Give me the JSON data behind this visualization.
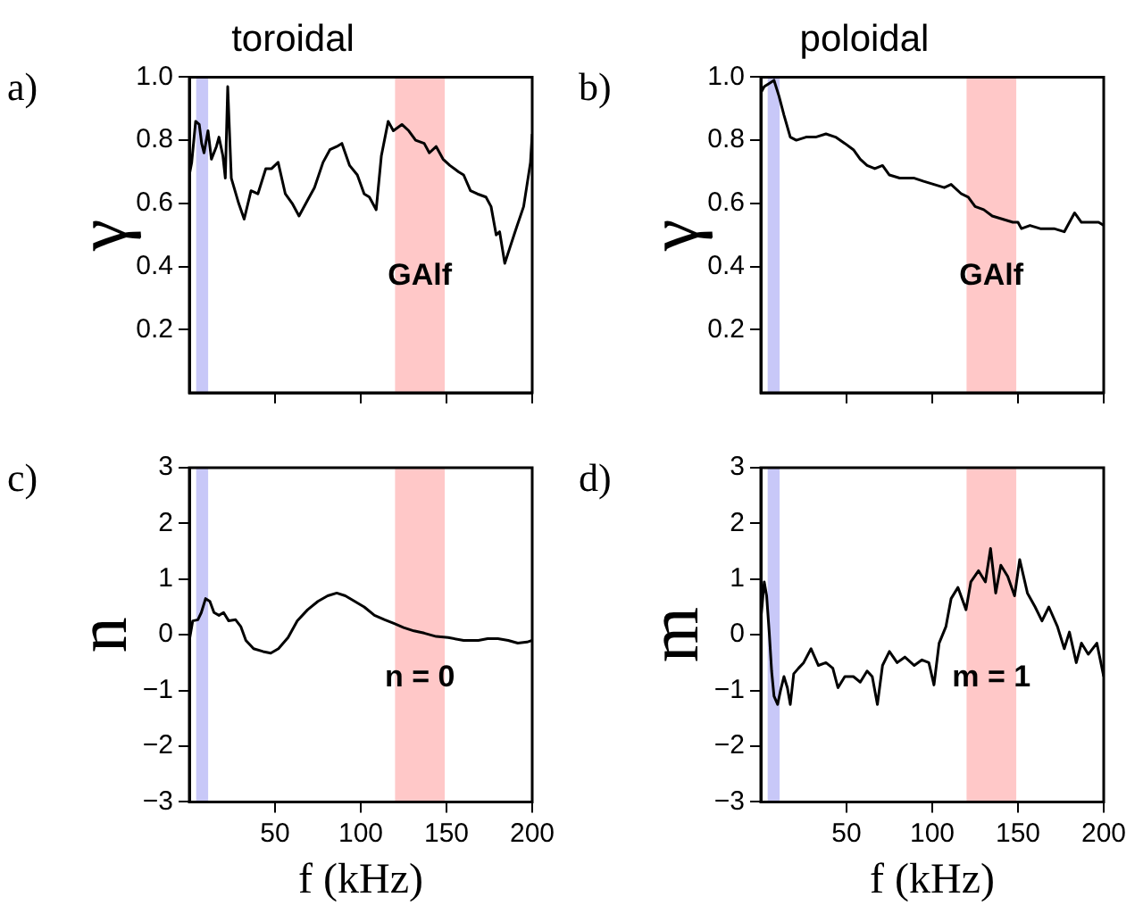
{
  "chart_data": [
    {
      "type": "line",
      "title": "toroidal",
      "ylabel": "γ",
      "xlim": [
        0,
        200
      ],
      "xticks": [
        50,
        100,
        150,
        200
      ],
      "ylim": [
        0,
        1
      ],
      "yticks": [
        0.2,
        0.4,
        0.6,
        0.8,
        {
          "value": 1,
          "label": "1.0"
        }
      ],
      "tick_labels": "y",
      "grid": false,
      "bands": [
        {
          "axis": "x",
          "from": 4,
          "to": 11,
          "color": "#c8c8f8"
        },
        {
          "axis": "x",
          "from": 120,
          "to": 149,
          "color": "#ffc8c8"
        }
      ],
      "annotations": [
        "a)",
        "GAlf"
      ],
      "series": [
        {
          "color": "#000000",
          "x": [
            0,
            1.4,
            3.7,
            5.8,
            7.2,
            8.6,
            10.9,
            12.9,
            15.8,
            17.3,
            19.6,
            21,
            22.4,
            24.5,
            28.8,
            32,
            36,
            40,
            44.6,
            48,
            51.8,
            56,
            60,
            64,
            69,
            73,
            78,
            82,
            86,
            89,
            93.5,
            98,
            102,
            105,
            109,
            112,
            116,
            119,
            124,
            128,
            132,
            137,
            140,
            144,
            148,
            152,
            157,
            160,
            164,
            168,
            173,
            176,
            179,
            181,
            184,
            187,
            190,
            195,
            199,
            200
          ],
          "values": [
            0.69,
            0.73,
            0.86,
            0.85,
            0.79,
            0.76,
            0.83,
            0.74,
            0.78,
            0.81,
            0.75,
            0.68,
            0.97,
            0.68,
            0.6,
            0.55,
            0.64,
            0.63,
            0.71,
            0.71,
            0.73,
            0.63,
            0.6,
            0.56,
            0.61,
            0.65,
            0.73,
            0.77,
            0.78,
            0.79,
            0.72,
            0.69,
            0.63,
            0.62,
            0.58,
            0.75,
            0.86,
            0.83,
            0.85,
            0.83,
            0.8,
            0.79,
            0.76,
            0.78,
            0.74,
            0.72,
            0.7,
            0.69,
            0.64,
            0.63,
            0.62,
            0.59,
            0.5,
            0.51,
            0.41,
            0.46,
            0.51,
            0.59,
            0.73,
            0.82
          ]
        }
      ]
    },
    {
      "type": "line",
      "title": "poloidal",
      "ylabel": "γ",
      "xlim": [
        0,
        200
      ],
      "xticks": [
        50,
        100,
        150,
        200
      ],
      "ylim": [
        0,
        1
      ],
      "yticks": [
        0.2,
        0.4,
        0.6,
        0.8,
        {
          "value": 1,
          "label": "1.0"
        }
      ],
      "tick_labels": "y",
      "grid": false,
      "bands": [
        {
          "axis": "x",
          "from": 4,
          "to": 11,
          "color": "#c8c8f8"
        },
        {
          "axis": "x",
          "from": 120,
          "to": 149,
          "color": "#ffc8c8"
        }
      ],
      "annotations": [
        "b)",
        "GAlf"
      ],
      "series": [
        {
          "color": "#000000",
          "x": [
            0,
            2,
            4.9,
            7.7,
            10.6,
            13.5,
            17.2,
            20.7,
            26.4,
            32,
            38,
            43.6,
            49,
            54,
            58,
            62,
            66.5,
            71,
            75,
            81,
            85,
            89.5,
            95,
            101,
            107,
            111,
            117,
            121,
            125,
            130,
            135,
            141,
            147,
            150,
            152,
            157,
            163,
            167,
            171,
            177,
            183,
            187,
            193,
            197,
            200
          ],
          "values": [
            0.95,
            0.97,
            0.98,
            0.99,
            0.94,
            0.88,
            0.81,
            0.8,
            0.81,
            0.81,
            0.82,
            0.81,
            0.79,
            0.77,
            0.74,
            0.72,
            0.71,
            0.72,
            0.69,
            0.68,
            0.68,
            0.68,
            0.67,
            0.66,
            0.65,
            0.66,
            0.63,
            0.62,
            0.59,
            0.58,
            0.56,
            0.55,
            0.54,
            0.54,
            0.52,
            0.53,
            0.52,
            0.52,
            0.52,
            0.51,
            0.57,
            0.54,
            0.54,
            0.54,
            0.53
          ]
        }
      ]
    },
    {
      "type": "line",
      "xlabel": "f (kHz)",
      "ylabel": "n",
      "xlim": [
        0,
        200
      ],
      "xticks": [
        50,
        100,
        150,
        200
      ],
      "ylim": [
        -3,
        3
      ],
      "yticks": [
        {
          "value": -3,
          "label": "−3"
        },
        {
          "value": -2,
          "label": "−2"
        },
        {
          "value": -1,
          "label": "−1"
        },
        0,
        1,
        2,
        3
      ],
      "grid": false,
      "bands": [
        {
          "axis": "x",
          "from": 4,
          "to": 11,
          "color": "#c8c8f8"
        },
        {
          "axis": "x",
          "from": 120,
          "to": 149,
          "color": "#ffc8c8"
        }
      ],
      "annotations": [
        "c)",
        "n = 0"
      ],
      "series": [
        {
          "color": "#000000",
          "x": [
            0,
            2,
            5,
            7,
            9.5,
            12,
            14.4,
            17.3,
            20,
            23,
            27,
            30,
            33,
            37.5,
            43,
            47.5,
            52,
            57.6,
            63,
            69,
            75,
            80.7,
            86,
            91,
            96.5,
            102,
            108,
            114,
            119.6,
            125,
            131,
            137,
            144,
            151,
            160,
            168.6,
            174,
            180,
            186,
            191.6,
            197,
            200
          ],
          "values": [
            -0.1,
            0.25,
            0.27,
            0.4,
            0.65,
            0.6,
            0.4,
            0.35,
            0.4,
            0.25,
            0.27,
            0.15,
            -0.1,
            -0.25,
            -0.3,
            -0.33,
            -0.25,
            -0.05,
            0.25,
            0.45,
            0.6,
            0.7,
            0.75,
            0.7,
            0.6,
            0.5,
            0.35,
            0.27,
            0.2,
            0.13,
            0.07,
            0.03,
            -0.03,
            -0.05,
            -0.1,
            -0.1,
            -0.07,
            -0.07,
            -0.1,
            -0.15,
            -0.13,
            -0.1
          ]
        }
      ]
    },
    {
      "type": "line",
      "xlabel": "f (kHz)",
      "ylabel": "m",
      "xlim": [
        0,
        200
      ],
      "xticks": [
        50,
        100,
        150,
        200
      ],
      "ylim": [
        -3,
        3
      ],
      "yticks": [
        {
          "value": -3,
          "label": "−3"
        },
        {
          "value": -2,
          "label": "−2"
        },
        {
          "value": -1,
          "label": "−1"
        },
        0,
        1,
        2,
        3
      ],
      "grid": false,
      "bands": [
        {
          "axis": "x",
          "from": 4,
          "to": 11,
          "color": "#c8c8f8"
        },
        {
          "axis": "x",
          "from": 120,
          "to": 149,
          "color": "#ffc8c8"
        }
      ],
      "annotations": [
        "d)",
        "m = 1"
      ],
      "series": [
        {
          "color": "#000000",
          "x": [
            0,
            2,
            3.4,
            4.9,
            6.3,
            7.7,
            9.8,
            11.5,
            13.5,
            15.5,
            17.2,
            19.2,
            22,
            25,
            29.3,
            33.6,
            38,
            42,
            45,
            49,
            54,
            58,
            62,
            65,
            68,
            71,
            75,
            79.5,
            84,
            89.5,
            94,
            98,
            101,
            104,
            108,
            111,
            115,
            119.7,
            122.5,
            127,
            131,
            134,
            137,
            140,
            144,
            148,
            151,
            155.5,
            160,
            164,
            168,
            173,
            177,
            180,
            184,
            187,
            191,
            196,
            200
          ],
          "values": [
            0.27,
            0.95,
            0.7,
            0.05,
            -0.65,
            -1.1,
            -1.25,
            -1,
            -0.75,
            -0.95,
            -1.25,
            -0.7,
            -0.6,
            -0.5,
            -0.25,
            -0.55,
            -0.5,
            -0.6,
            -0.95,
            -0.75,
            -0.75,
            -0.85,
            -0.65,
            -0.75,
            -1.25,
            -0.55,
            -0.3,
            -0.5,
            -0.4,
            -0.55,
            -0.45,
            -0.5,
            -0.9,
            -0.15,
            0.15,
            0.65,
            0.85,
            0.45,
            0.95,
            1.15,
            0.95,
            1.55,
            0.75,
            1.25,
            1.05,
            0.7,
            1.35,
            0.75,
            0.5,
            0.25,
            0.5,
            0.15,
            -0.25,
            0.05,
            -0.5,
            -0.15,
            -0.35,
            -0.15,
            -0.75
          ]
        }
      ]
    }
  ]
}
